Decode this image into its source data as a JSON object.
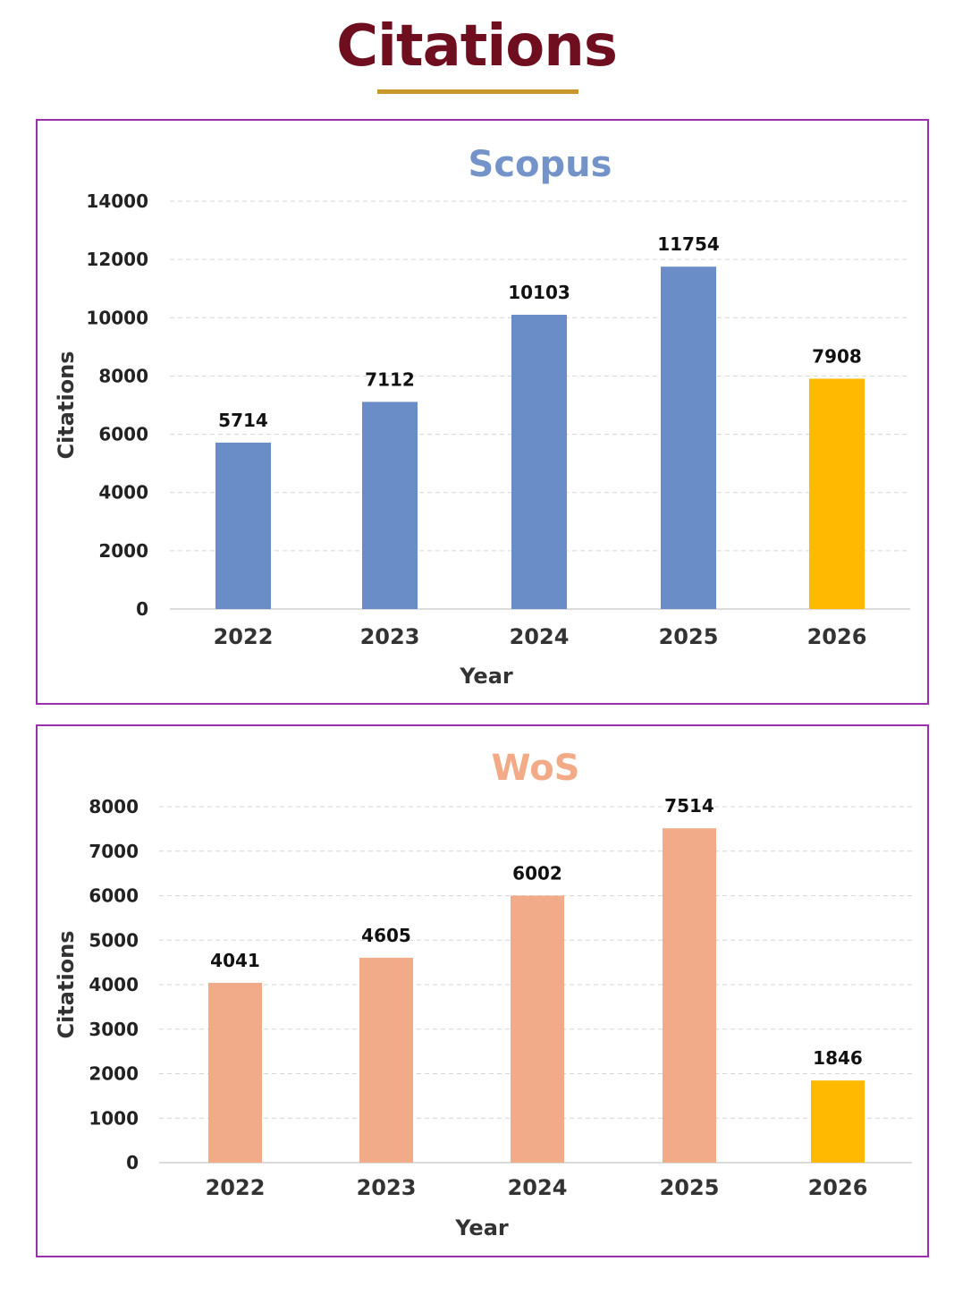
{
  "page": {
    "title": "Citations",
    "title_color": "#6f0e1e",
    "underline_color": "#c9962a",
    "panel_border_color": "#9b2fae"
  },
  "chart_data": [
    {
      "type": "bar",
      "title": "Scopus",
      "title_color": "#7393c9",
      "categories": [
        "2022",
        "2023",
        "2024",
        "2025",
        "2026"
      ],
      "values": [
        5714,
        7112,
        10103,
        11754,
        7908
      ],
      "bar_colors": [
        "#6a8dc8",
        "#6a8dc8",
        "#6a8dc8",
        "#6a8dc8",
        "#ffb900"
      ],
      "data_labels": [
        "5714",
        "7112",
        "10103",
        "11754",
        "7908"
      ],
      "xlabel": "Year",
      "ylabel": "Citations",
      "ylim": [
        0,
        14000
      ],
      "yticks": [
        0,
        2000,
        4000,
        6000,
        8000,
        10000,
        12000,
        14000
      ],
      "ytick_labels": [
        "0",
        "2000",
        "4000",
        "6000",
        "8000",
        "10000",
        "12000",
        "14000"
      ],
      "grid": true,
      "legend": "none"
    },
    {
      "type": "bar",
      "title": "WoS",
      "title_color": "#f2aa87",
      "categories": [
        "2022",
        "2023",
        "2024",
        "2025",
        "2026"
      ],
      "values": [
        4041,
        4605,
        6002,
        7514,
        1846
      ],
      "bar_colors": [
        "#f2ab88",
        "#f2ab88",
        "#f2ab88",
        "#f2ab88",
        "#ffb900"
      ],
      "data_labels": [
        "4041",
        "4605",
        "6002",
        "7514",
        "1846"
      ],
      "xlabel": "Year",
      "ylabel": "Citations",
      "ylim": [
        0,
        8000
      ],
      "yticks": [
        0,
        1000,
        2000,
        3000,
        4000,
        5000,
        6000,
        7000,
        8000
      ],
      "ytick_labels": [
        "0",
        "1000",
        "2000",
        "3000",
        "4000",
        "5000",
        "6000",
        "7000",
        "8000"
      ],
      "grid": true,
      "legend": "none"
    }
  ]
}
